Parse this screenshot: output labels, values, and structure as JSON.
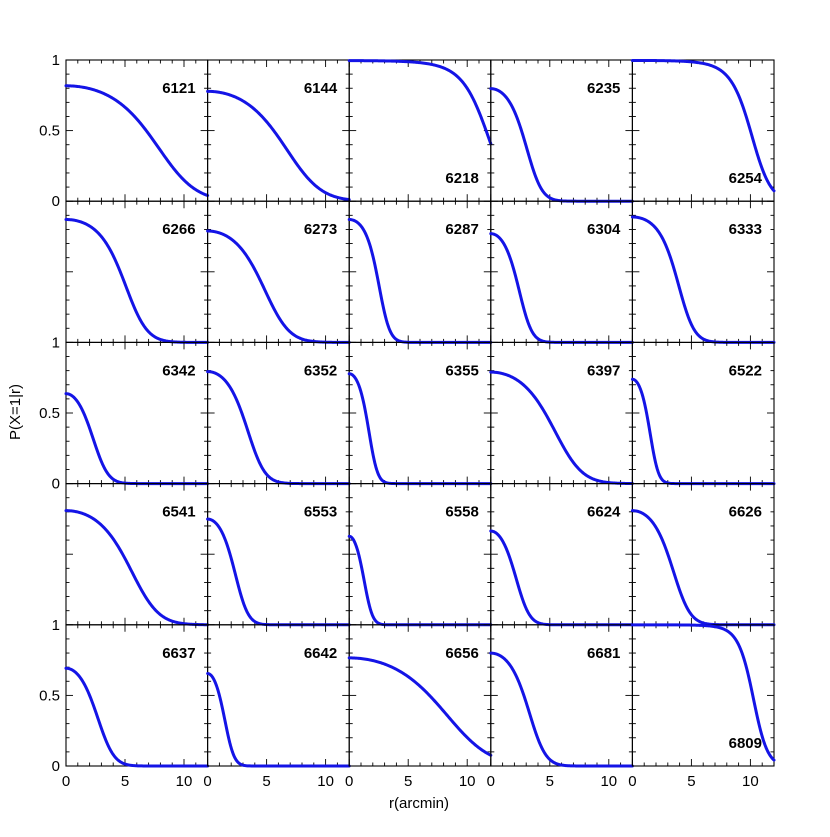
{
  "chart_data": {
    "type": "line",
    "layout": {
      "rows": 5,
      "cols": 5
    },
    "xlabel": "r(arcmin)",
    "ylabel": "P(X=1|r)",
    "xlim": [
      0,
      12
    ],
    "ylim": [
      0,
      1
    ],
    "x_ticks": [
      0,
      5,
      10
    ],
    "x_tick_labels": [
      "0",
      "5",
      "10"
    ],
    "y_ticks": [
      {
        "value": 1,
        "label": "1"
      },
      {
        "value": 0.5,
        "label": "0.5"
      },
      {
        "value": 0,
        "label": "0"
      }
    ],
    "line_color": "#1414e6",
    "panels": [
      {
        "label": "6121",
        "label_pos": "top",
        "r50": 6.8,
        "s": 0.18
      },
      {
        "label": "6144",
        "label_pos": "top",
        "r50": 5.6,
        "s": 0.2
      },
      {
        "label": "6218",
        "label_pos": "bottom",
        "r50": 11.6,
        "s": 0.2
      },
      {
        "label": "6235",
        "label_pos": "top",
        "r50": 2.6,
        "s": 0.45
      },
      {
        "label": "6254",
        "label_pos": "bottom",
        "r50": 10.0,
        "s": 0.24
      },
      {
        "label": "6266",
        "label_pos": "top",
        "r50": 4.6,
        "s": 0.3
      },
      {
        "label": "6273",
        "label_pos": "top",
        "r50": 4.1,
        "s": 0.28
      },
      {
        "label": "6287",
        "label_pos": "top",
        "r50": 2.3,
        "s": 0.6
      },
      {
        "label": "6304",
        "label_pos": "top",
        "r50": 2.0,
        "s": 0.55
      },
      {
        "label": "6333",
        "label_pos": "top",
        "r50": 3.6,
        "s": 0.4
      },
      {
        "label": "6342",
        "label_pos": "top",
        "r50": 1.5,
        "s": 0.5
      },
      {
        "label": "6352",
        "label_pos": "top",
        "r50": 2.9,
        "s": 0.4
      },
      {
        "label": "6355",
        "label_pos": "top",
        "r50": 1.4,
        "s": 0.8
      },
      {
        "label": "6397",
        "label_pos": "top",
        "r50": 4.6,
        "s": 0.25
      },
      {
        "label": "6522",
        "label_pos": "top",
        "r50": 1.2,
        "s": 0.85
      },
      {
        "label": "6541",
        "label_pos": "top",
        "r50": 4.8,
        "s": 0.25
      },
      {
        "label": "6553",
        "label_pos": "top",
        "r50": 1.9,
        "s": 0.55
      },
      {
        "label": "6558",
        "label_pos": "top",
        "r50": 0.8,
        "s": 0.9
      },
      {
        "label": "6624",
        "label_pos": "top",
        "r50": 1.5,
        "s": 0.55
      },
      {
        "label": "6626",
        "label_pos": "top",
        "r50": 3.0,
        "s": 0.4
      },
      {
        "label": "6637",
        "label_pos": "top",
        "r50": 2.0,
        "s": 0.45
      },
      {
        "label": "6642",
        "label_pos": "top",
        "r50": 1.0,
        "s": 0.8
      },
      {
        "label": "6656",
        "label_pos": "top",
        "r50": 6.8,
        "s": 0.16
      },
      {
        "label": "6681",
        "label_pos": "top",
        "r50": 2.8,
        "s": 0.42
      },
      {
        "label": "6809",
        "label_pos": "bottom",
        "r50": 10.2,
        "s": 0.28
      }
    ]
  }
}
